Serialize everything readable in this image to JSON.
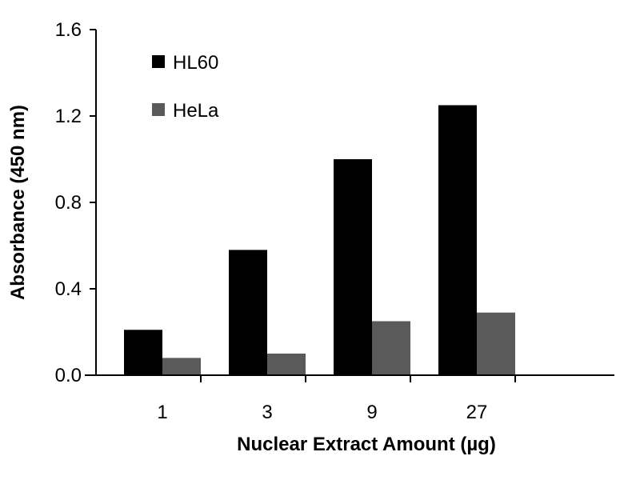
{
  "chart_data": {
    "type": "bar",
    "title": "",
    "xlabel": "Nuclear Extract Amount (µg)",
    "ylabel": "Absorbance (450 nm)",
    "ylim": [
      0,
      1.6
    ],
    "yticks": [
      "0.0",
      "0.4",
      "0.8",
      "1.2",
      "1.6"
    ],
    "categories": [
      "1",
      "3",
      "9",
      "27"
    ],
    "series": [
      {
        "name": "HL60",
        "color": "#000000",
        "values": [
          0.21,
          0.58,
          1.0,
          1.25
        ]
      },
      {
        "name": "HeLa",
        "color": "#5a5a5a",
        "values": [
          0.08,
          0.1,
          0.25,
          0.29
        ]
      }
    ],
    "legend_position": "top-left",
    "grid": false
  }
}
